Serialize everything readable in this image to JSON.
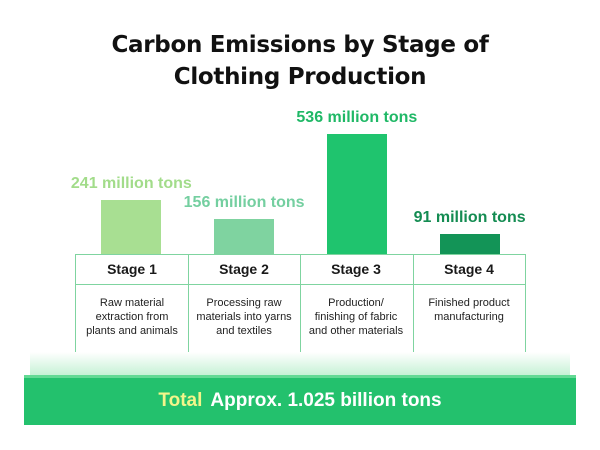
{
  "title": {
    "line1": "Carbon Emissions by Stage of",
    "line2": "Clothing Production"
  },
  "colors": {
    "accent": "#23c16d",
    "table_border": "#7fd4a0",
    "total_key": "#f3f58a"
  },
  "chart_data": {
    "type": "bar",
    "title": "Carbon Emissions by Stage of Clothing Production",
    "categories": [
      "Stage 1",
      "Stage 2",
      "Stage 3",
      "Stage 4"
    ],
    "values": [
      241,
      156,
      536,
      91
    ],
    "value_labels": [
      "241 million tons",
      "156 million tons",
      "536 million tons",
      "91 million tons"
    ],
    "descriptions": [
      "Raw material\nextraction from\nplants and animals",
      "Processing raw\nmaterials into yarns\nand textiles",
      "Production/\nfinishing of fabric\nand other materials",
      "Finished product\nmanufacturing"
    ],
    "bar_colors": [
      "#a8df92",
      "#7fd3a0",
      "#1fc46e",
      "#139457"
    ],
    "label_colors": [
      "#a2dc8a",
      "#74cfa0",
      "#1fb866",
      "#148c52"
    ],
    "ylim": [
      0,
      536
    ],
    "grid": false
  },
  "total": {
    "key": "Total",
    "value": "Approx. 1.025 billion tons"
  }
}
